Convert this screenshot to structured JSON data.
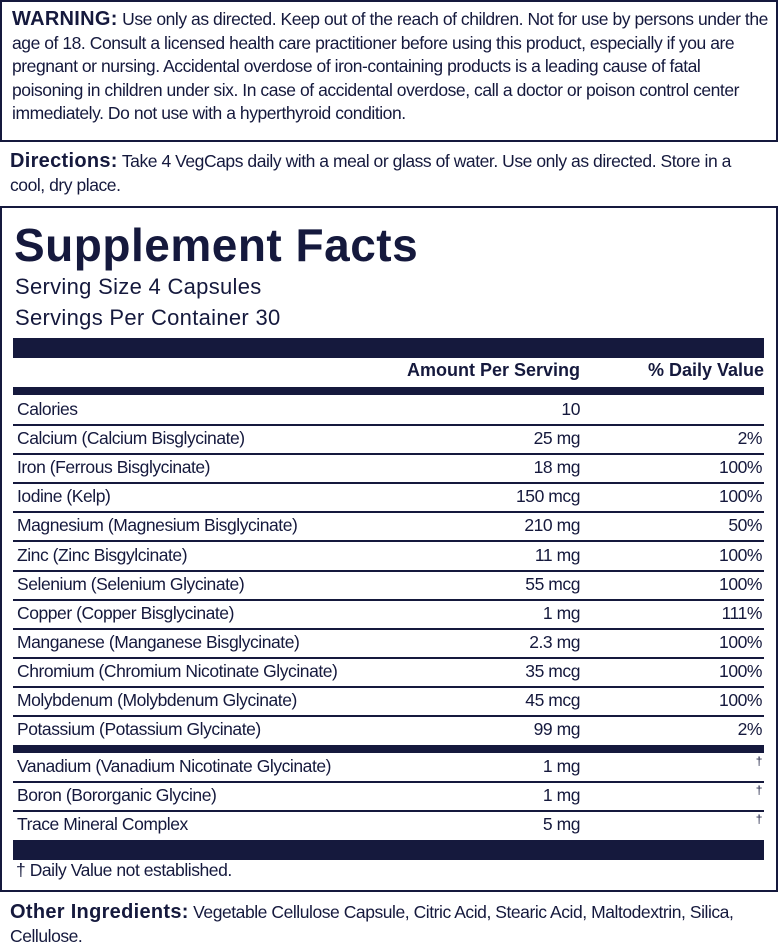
{
  "warning": {
    "label": "WARNING:",
    "text": " Use only as directed. Keep out of the reach of children. Not for use by persons under the age of 18. Consult a licensed health care practitioner before using this product, especially if you are pregnant or nursing. Accidental overdose of iron-containing products is a leading cause of fatal poisoning in children under six. In case of accidental overdose, call a doctor or poison control center immediately. Do not use with a hyperthyroid condition."
  },
  "directions": {
    "label": "Directions:",
    "text": " Take 4 VegCaps daily with a meal or glass of water. Use only as directed. Store in a cool, dry place."
  },
  "facts": {
    "title": "Supplement Facts",
    "serving_size": "Serving Size 4 Capsules",
    "servings_per_container": "Servings Per Container 30",
    "header_amount": "Amount Per Serving",
    "header_dv": "% Daily Value",
    "rows": [
      {
        "name": "Calories",
        "amount": "10",
        "dv": ""
      },
      {
        "name": "Calcium (Calcium Bisglycinate)",
        "amount": "25 mg",
        "dv": "2%"
      },
      {
        "name": "Iron (Ferrous Bisglycinate)",
        "amount": "18 mg",
        "dv": "100%"
      },
      {
        "name": "Iodine (Kelp)",
        "amount": "150 mcg",
        "dv": "100%"
      },
      {
        "name": "Magnesium (Magnesium Bisglycinate)",
        "amount": "210 mg",
        "dv": "50%"
      },
      {
        "name": "Zinc (Zinc Bisgylcinate)",
        "amount": "11 mg",
        "dv": "100%"
      },
      {
        "name": "Selenium (Selenium Glycinate)",
        "amount": "55 mcg",
        "dv": "100%"
      },
      {
        "name": "Copper (Copper Bisglycinate)",
        "amount": "1 mg",
        "dv": "111%"
      },
      {
        "name": "Manganese (Manganese Bisglycinate)",
        "amount": "2.3 mg",
        "dv": "100%"
      },
      {
        "name": "Chromium (Chromium Nicotinate Glycinate)",
        "amount": "35 mcg",
        "dv": "100%"
      },
      {
        "name": "Molybdenum (Molybdenum Glycinate)",
        "amount": "45 mcg",
        "dv": "100%"
      },
      {
        "name": "Potassium (Potassium Glycinate)",
        "amount": "99 mg",
        "dv": "2%"
      }
    ],
    "other_rows": [
      {
        "name": "Vanadium (Vanadium Nicotinate Glycinate)",
        "amount": "1 mg",
        "dv": "†"
      },
      {
        "name": "Boron (Bororganic Glycine)",
        "amount": "1 mg",
        "dv": "†"
      },
      {
        "name": "Trace Mineral Complex",
        "amount": "5 mg",
        "dv": "†"
      }
    ],
    "footnote": "† Daily Value not established."
  },
  "other_ingredients": {
    "label": "Other Ingredients:",
    "text": " Vegetable Cellulose Capsule, Citric Acid, Stearic Acid, Maltodextrin, Silica, Cellulose."
  },
  "colors": {
    "ink": "#15193d"
  }
}
